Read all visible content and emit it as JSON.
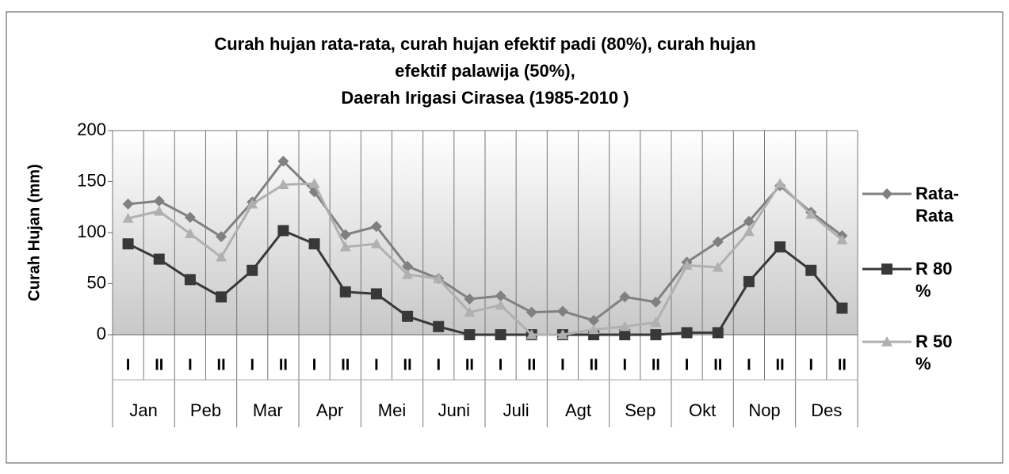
{
  "chart_data": {
    "type": "line",
    "title": [
      "Curah hujan rata-rata, curah hujan efektif padi (80%), curah hujan",
      "efektif palawija (50%),",
      "Daerah Irigasi Cirasea (1985-2010 )"
    ],
    "y_label": "Curah Hujan (mm)",
    "categories": [
      "I",
      "II",
      "I",
      "II",
      "I",
      "II",
      "I",
      "II",
      "I",
      "II",
      "I",
      "II",
      "I",
      "II",
      "I",
      "II",
      "I",
      "II",
      "I",
      "II",
      "I",
      "II",
      "I",
      "II"
    ],
    "groups": [
      "Jan",
      "Peb",
      "Mar",
      "Apr",
      "Mei",
      "Juni",
      "Juli",
      "Agt",
      "Sep",
      "Okt",
      "Nop",
      "Des"
    ],
    "series": [
      {
        "name": "Rata-Rata",
        "color": "#808080",
        "marker": "diamond",
        "values": [
          128,
          131,
          115,
          96,
          130,
          170,
          140,
          98,
          106,
          67,
          55,
          35,
          38,
          22,
          23,
          14,
          37,
          32,
          71,
          91,
          111,
          146,
          120,
          97
        ]
      },
      {
        "name": "R 80 %",
        "color": "#383838",
        "marker": "square",
        "values": [
          89,
          74,
          54,
          37,
          63,
          102,
          89,
          42,
          40,
          18,
          8,
          0,
          0,
          0,
          0,
          0,
          0,
          0,
          2,
          2,
          52,
          86,
          63,
          26
        ]
      },
      {
        "name": "R 50 %",
        "color": "#b0b0b0",
        "marker": "triangle",
        "values": [
          114,
          121,
          99,
          76,
          128,
          147,
          148,
          86,
          89,
          59,
          55,
          22,
          29,
          0,
          0,
          5,
          8,
          12,
          68,
          66,
          101,
          148,
          118,
          93
        ]
      }
    ],
    "ylim": [
      0,
      200
    ],
    "yticks": [
      0,
      50,
      100,
      150,
      200
    ],
    "grid": true
  }
}
